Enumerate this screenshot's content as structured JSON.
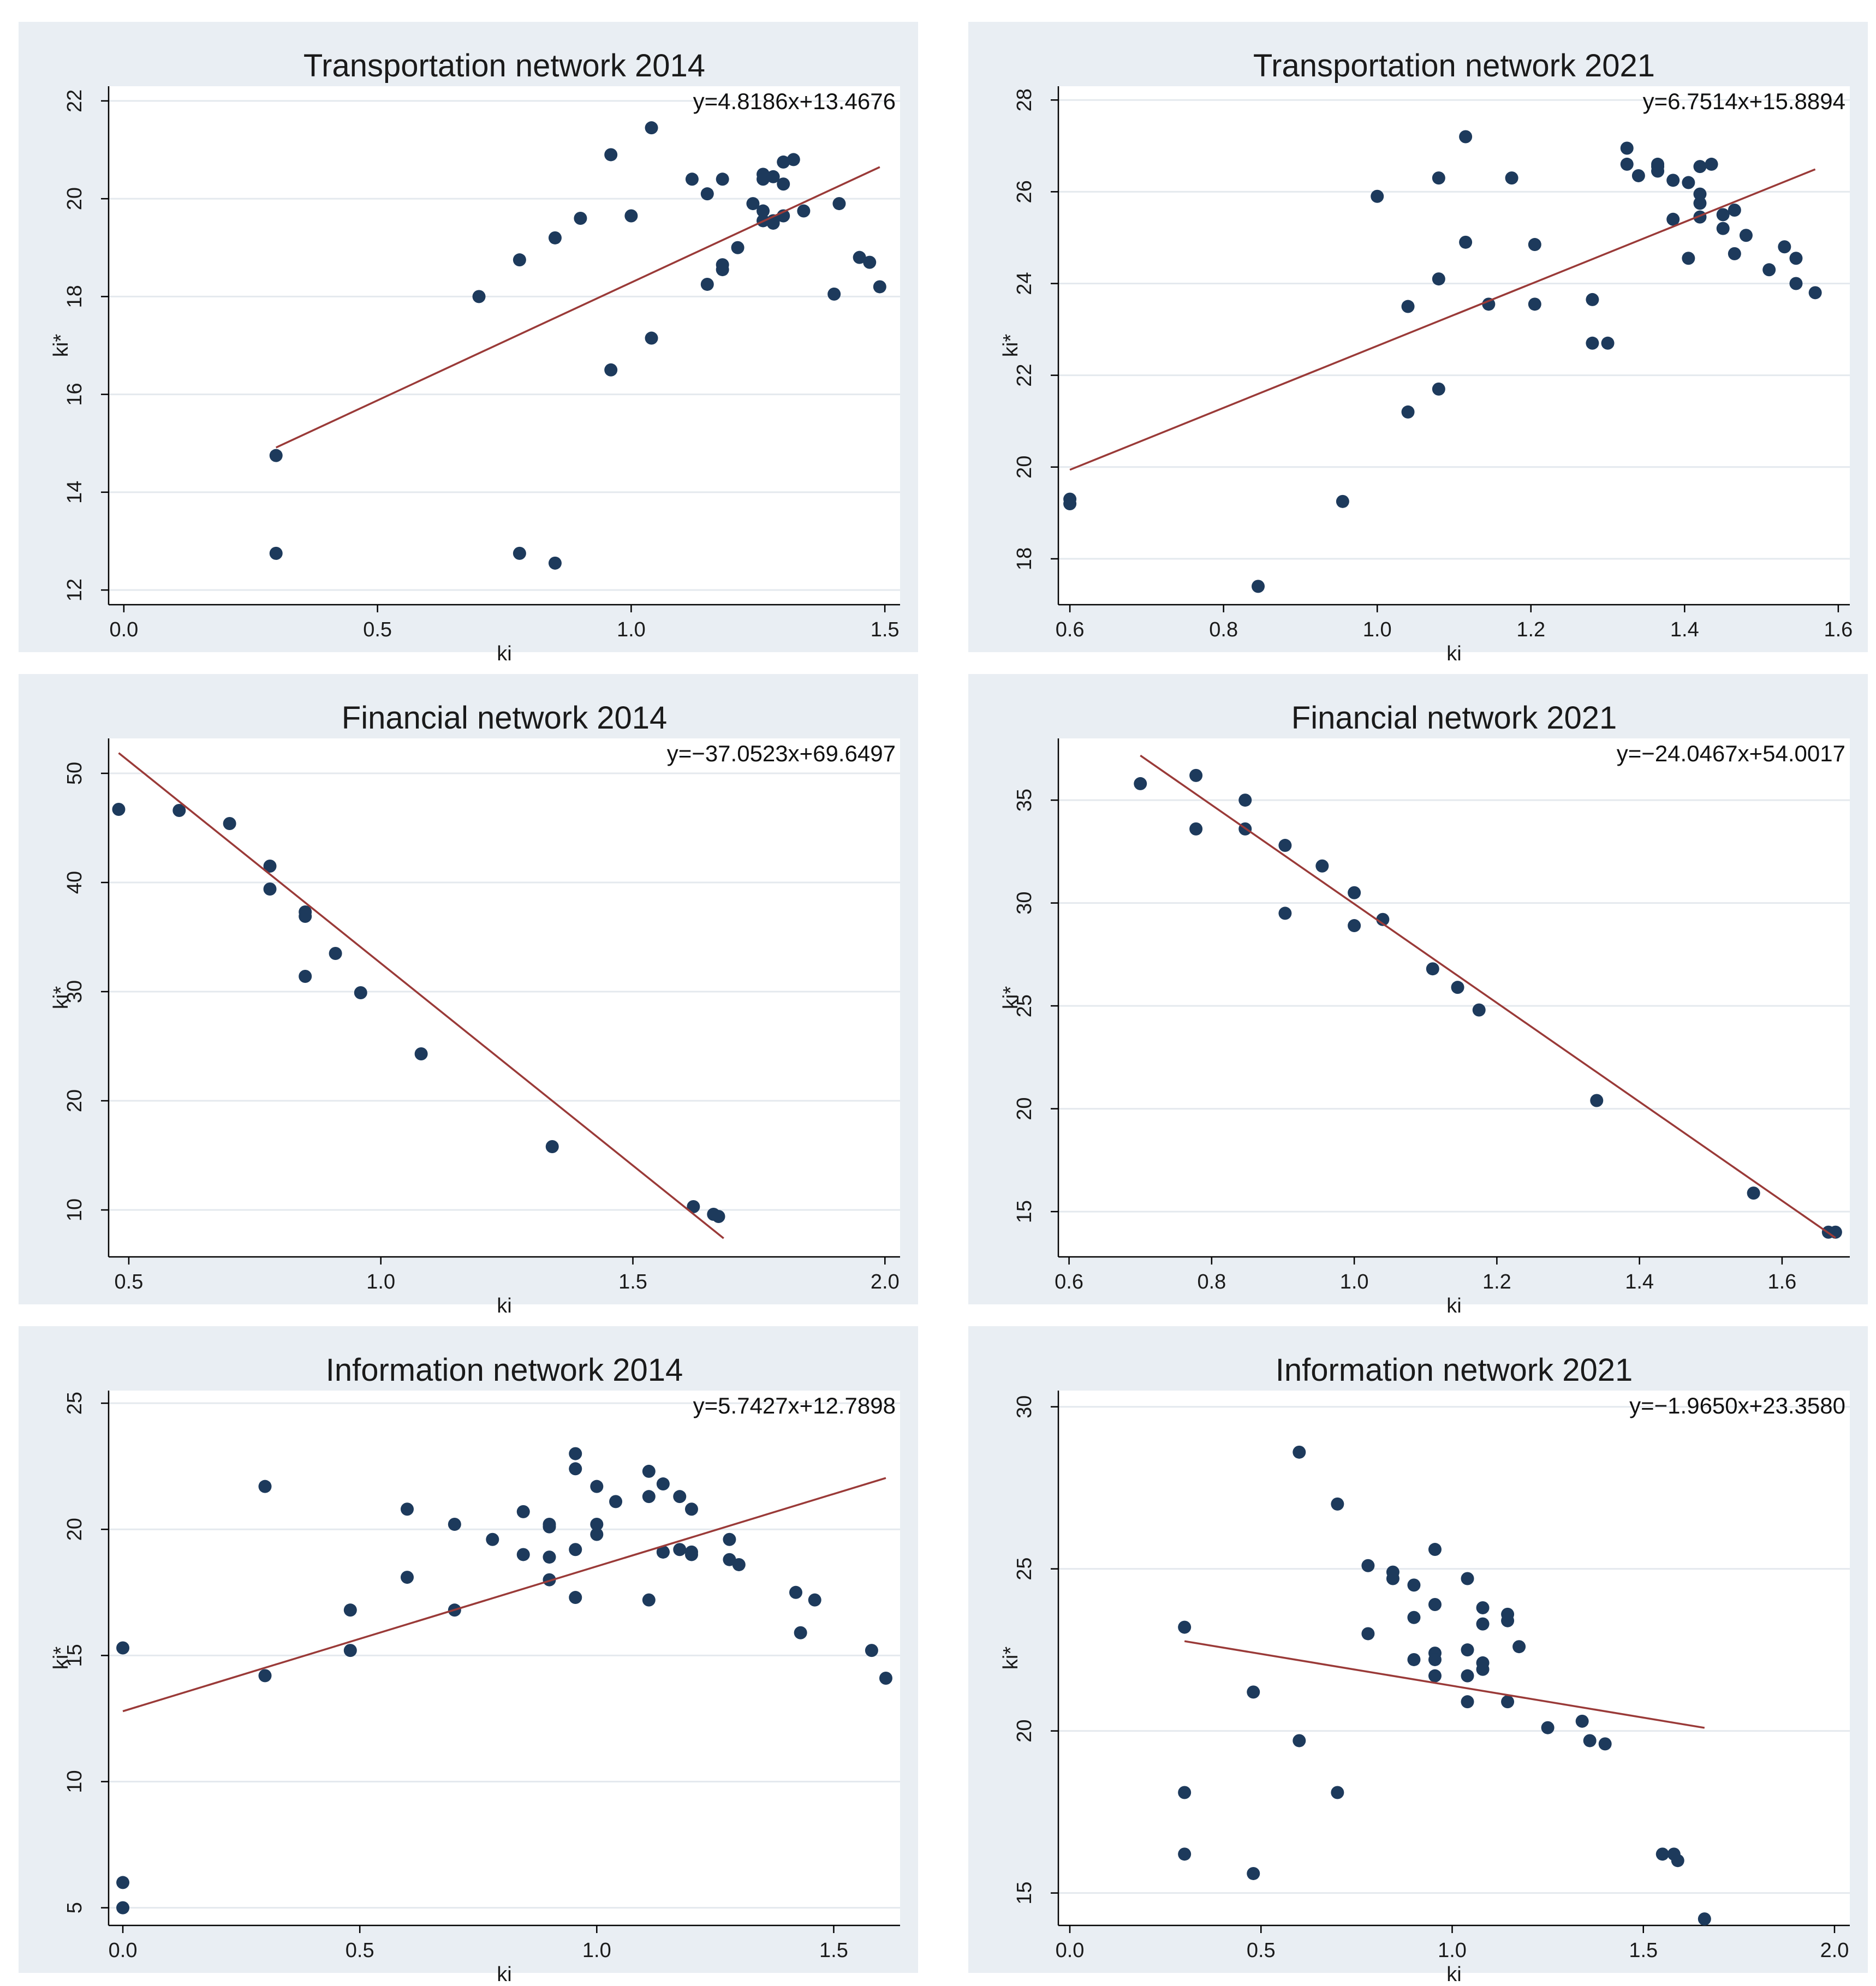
{
  "chart_data": [
    {
      "type": "scatter",
      "title": "Transportation network 2014",
      "xlabel": "ki",
      "ylabel": "ki*",
      "equation": "y=4.8186x+13.4676",
      "fit": {
        "slope": 4.8186,
        "intercept": 13.4676,
        "x_range": [
          0.3,
          1.49
        ]
      },
      "xlim": [
        -0.03,
        1.53
      ],
      "ylim": [
        11.7,
        22.3
      ],
      "xticks": [
        0.0,
        0.5,
        1.0,
        1.5
      ],
      "xtick_labels": [
        "0.0",
        "0.5",
        "1.0",
        "1.5"
      ],
      "yticks": [
        12,
        14,
        16,
        18,
        20,
        22
      ],
      "ytick_labels": [
        "12",
        "14",
        "16",
        "18",
        "20",
        "22"
      ],
      "points": {
        "x": [
          0.3,
          0.3,
          0.7,
          0.78,
          0.78,
          0.85,
          0.85,
          0.9,
          0.96,
          0.96,
          1.0,
          1.04,
          1.04,
          1.12,
          1.15,
          1.15,
          1.18,
          1.18,
          1.18,
          1.21,
          1.24,
          1.26,
          1.26,
          1.26,
          1.26,
          1.28,
          1.28,
          1.28,
          1.3,
          1.3,
          1.3,
          1.32,
          1.34,
          1.4,
          1.41,
          1.45,
          1.47,
          1.49
        ],
        "y": [
          14.75,
          12.75,
          18.0,
          18.75,
          12.75,
          19.2,
          12.55,
          19.6,
          20.9,
          16.5,
          19.65,
          21.45,
          17.15,
          20.4,
          20.1,
          18.25,
          20.4,
          18.65,
          18.55,
          19.0,
          19.9,
          20.5,
          20.4,
          19.75,
          19.55,
          20.45,
          19.5,
          19.55,
          20.75,
          20.3,
          19.65,
          20.8,
          19.75,
          18.05,
          19.9,
          18.8,
          18.7,
          18.2
        ]
      }
    },
    {
      "type": "scatter",
      "title": "Transportation network 2021",
      "xlabel": "ki",
      "ylabel": "ki*",
      "equation": "y=6.7514x+15.8894",
      "fit": {
        "slope": 6.7514,
        "intercept": 15.8894,
        "x_range": [
          0.6,
          1.57
        ]
      },
      "xlim": [
        0.585,
        1.615
      ],
      "ylim": [
        17.0,
        28.3
      ],
      "xticks": [
        0.6,
        0.8,
        1.0,
        1.2,
        1.4,
        1.6
      ],
      "xtick_labels": [
        "0.6",
        "0.8",
        "1.0",
        "1.2",
        "1.4",
        "1.6"
      ],
      "yticks": [
        18,
        20,
        22,
        24,
        26,
        28
      ],
      "ytick_labels": [
        "18",
        "20",
        "22",
        "24",
        "26",
        "28"
      ],
      "points": {
        "x": [
          0.6,
          0.6,
          0.845,
          0.955,
          1.0,
          1.04,
          1.04,
          1.08,
          1.08,
          1.08,
          1.115,
          1.115,
          1.145,
          1.175,
          1.205,
          1.205,
          1.28,
          1.28,
          1.3,
          1.325,
          1.325,
          1.34,
          1.365,
          1.365,
          1.365,
          1.385,
          1.385,
          1.405,
          1.405,
          1.42,
          1.42,
          1.42,
          1.42,
          1.435,
          1.45,
          1.45,
          1.465,
          1.465,
          1.48,
          1.51,
          1.53,
          1.545,
          1.545,
          1.57
        ],
        "y": [
          19.3,
          19.2,
          17.4,
          19.25,
          25.9,
          23.5,
          21.2,
          26.3,
          24.1,
          21.7,
          27.2,
          24.9,
          23.55,
          26.3,
          24.85,
          23.55,
          23.65,
          22.7,
          22.7,
          26.95,
          26.6,
          26.35,
          26.55,
          26.45,
          26.6,
          26.25,
          25.4,
          26.2,
          24.55,
          26.55,
          25.95,
          25.75,
          25.45,
          26.6,
          25.5,
          25.2,
          25.6,
          24.65,
          25.05,
          24.3,
          24.8,
          24.0,
          24.55,
          23.8
        ]
      }
    },
    {
      "type": "scatter",
      "title": "Financial network 2014",
      "xlabel": "ki",
      "ylabel": "ki*",
      "equation": "y=−37.0523x+69.6497",
      "fit": {
        "slope": -37.0523,
        "intercept": 69.6497,
        "x_range": [
          0.48,
          1.68
        ]
      },
      "xlim": [
        0.46,
        2.03
      ],
      "ylim": [
        5.7,
        53.2
      ],
      "xticks": [
        0.5,
        1.0,
        1.5,
        2.0
      ],
      "xtick_labels": [
        "0.5",
        "1.0",
        "1.5",
        "2.0"
      ],
      "yticks": [
        10,
        20,
        30,
        40,
        50
      ],
      "ytick_labels": [
        "10",
        "20",
        "30",
        "40",
        "50"
      ],
      "points": {
        "x": [
          0.48,
          0.6,
          0.7,
          0.78,
          0.78,
          0.85,
          0.85,
          0.85,
          0.91,
          0.96,
          1.08,
          1.34,
          1.62,
          1.66,
          1.67
        ],
        "y": [
          46.7,
          46.6,
          45.4,
          41.5,
          39.4,
          37.3,
          36.9,
          31.4,
          33.5,
          29.9,
          24.3,
          15.8,
          10.3,
          9.6,
          9.4
        ]
      }
    },
    {
      "type": "scatter",
      "title": "Financial network 2021",
      "xlabel": "ki",
      "ylabel": "ki*",
      "equation": "y=−24.0467x+54.0017",
      "fit": {
        "slope": -24.0467,
        "intercept": 54.0017,
        "x_range": [
          0.7,
          1.675
        ]
      },
      "xlim": [
        0.585,
        1.695
      ],
      "ylim": [
        12.8,
        38.0
      ],
      "xticks": [
        0.6,
        0.8,
        1.0,
        1.2,
        1.4,
        1.6
      ],
      "xtick_labels": [
        "0.6",
        "0.8",
        "1.0",
        "1.2",
        "1.4",
        "1.6"
      ],
      "yticks": [
        15,
        20,
        25,
        30,
        35
      ],
      "ytick_labels": [
        "15",
        "20",
        "25",
        "30",
        "35"
      ],
      "points": {
        "x": [
          0.7,
          0.778,
          0.778,
          0.847,
          0.847,
          0.903,
          0.903,
          0.955,
          1.0,
          1.0,
          1.04,
          1.11,
          1.145,
          1.175,
          1.34,
          1.56,
          1.665,
          1.675
        ],
        "y": [
          35.8,
          36.2,
          33.6,
          35.0,
          33.6,
          32.8,
          29.5,
          31.8,
          30.5,
          28.9,
          29.2,
          26.8,
          25.9,
          24.8,
          20.4,
          15.9,
          14.0,
          14.0
        ]
      }
    },
    {
      "type": "scatter",
      "title": "Information network 2014",
      "xlabel": "ki",
      "ylabel": "ki*",
      "equation": "y=5.7427x+12.7898",
      "fit": {
        "slope": 5.7427,
        "intercept": 12.7898,
        "x_range": [
          0.0,
          1.61
        ]
      },
      "xlim": [
        -0.03,
        1.64
      ],
      "ylim": [
        4.3,
        25.5
      ],
      "xticks": [
        0.0,
        0.5,
        1.0,
        1.5
      ],
      "xtick_labels": [
        "0.0",
        "0.5",
        "1.0",
        "1.5"
      ],
      "yticks": [
        5,
        10,
        15,
        20,
        25
      ],
      "ytick_labels": [
        "5",
        "10",
        "15",
        "20",
        "25"
      ],
      "points": {
        "x": [
          0.0,
          0.0,
          0.0,
          0.3,
          0.3,
          0.48,
          0.48,
          0.6,
          0.6,
          0.7,
          0.7,
          0.78,
          0.845,
          0.845,
          0.9,
          0.9,
          0.9,
          0.9,
          0.955,
          0.955,
          0.955,
          0.955,
          1.0,
          1.0,
          1.0,
          1.04,
          1.11,
          1.11,
          1.11,
          1.14,
          1.14,
          1.14,
          1.175,
          1.175,
          1.2,
          1.2,
          1.2,
          1.28,
          1.28,
          1.3,
          1.42,
          1.43,
          1.46,
          1.58,
          1.61
        ],
        "y": [
          15.3,
          6.0,
          5.0,
          21.7,
          14.2,
          16.8,
          15.2,
          20.8,
          18.1,
          20.2,
          16.8,
          19.6,
          20.7,
          19.0,
          20.2,
          20.1,
          18.9,
          18.0,
          23.0,
          22.4,
          19.2,
          17.3,
          21.7,
          20.2,
          19.8,
          21.1,
          22.3,
          21.3,
          17.2,
          21.8,
          19.1,
          19.1,
          21.3,
          19.2,
          20.8,
          19.1,
          19.0,
          19.6,
          18.8,
          18.6,
          17.5,
          15.9,
          17.2,
          15.2,
          14.1
        ]
      }
    },
    {
      "type": "scatter",
      "title": "Information network 2021",
      "xlabel": "ki",
      "ylabel": "ki*",
      "equation": "y=−1.9650x+23.3580",
      "fit": {
        "slope": -1.965,
        "intercept": 23.358,
        "x_range": [
          0.3,
          1.66
        ]
      },
      "xlim": [
        -0.03,
        2.04
      ],
      "ylim": [
        14.0,
        30.5
      ],
      "xticks": [
        0.0,
        0.5,
        1.0,
        1.5,
        2.0
      ],
      "xtick_labels": [
        "0.0",
        "0.5",
        "1.0",
        "1.5",
        "2.0"
      ],
      "yticks": [
        15,
        20,
        25,
        30
      ],
      "ytick_labels": [
        "15",
        "20",
        "25",
        "30"
      ],
      "points": {
        "x": [
          0.3,
          0.3,
          0.3,
          0.48,
          0.48,
          0.6,
          0.6,
          0.7,
          0.7,
          0.78,
          0.78,
          0.845,
          0.845,
          0.9,
          0.9,
          0.9,
          0.955,
          0.955,
          0.955,
          0.955,
          0.955,
          1.04,
          1.04,
          1.04,
          1.04,
          1.08,
          1.08,
          1.08,
          1.08,
          1.145,
          1.145,
          1.145,
          1.175,
          1.25,
          1.34,
          1.36,
          1.4,
          1.55,
          1.58,
          1.59,
          1.66
        ],
        "y": [
          23.2,
          18.1,
          16.2,
          21.2,
          15.6,
          28.6,
          19.7,
          27.0,
          18.1,
          25.1,
          23.0,
          24.9,
          24.7,
          24.5,
          23.5,
          22.2,
          25.6,
          23.9,
          22.4,
          22.2,
          21.7,
          24.7,
          22.5,
          21.7,
          20.9,
          23.8,
          23.3,
          22.1,
          21.9,
          23.6,
          23.4,
          20.9,
          22.6,
          20.1,
          20.3,
          19.7,
          19.6,
          16.2,
          16.2,
          16.0,
          14.2
        ]
      }
    }
  ]
}
